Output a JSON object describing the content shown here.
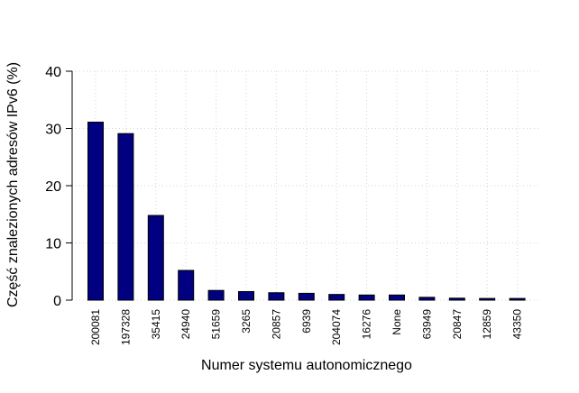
{
  "chart_data": {
    "type": "bar",
    "title": "",
    "xlabel": "Numer systemu autonomicznego",
    "ylabel": "Część znalezionych adresów IPv6 (%)",
    "ylim": [
      0,
      40
    ],
    "yticks": [
      0,
      10,
      20,
      30,
      40
    ],
    "grid": true,
    "bar_color": "#000080",
    "categories": [
      "200081",
      "197328",
      "35415",
      "24940",
      "51659",
      "3265",
      "20857",
      "6939",
      "204074",
      "16276",
      "None",
      "63949",
      "20847",
      "12859",
      "43350"
    ],
    "values": [
      31.1,
      29.1,
      14.8,
      5.2,
      1.7,
      1.5,
      1.3,
      1.2,
      1.0,
      0.9,
      0.9,
      0.5,
      0.35,
      0.3,
      0.3
    ]
  }
}
